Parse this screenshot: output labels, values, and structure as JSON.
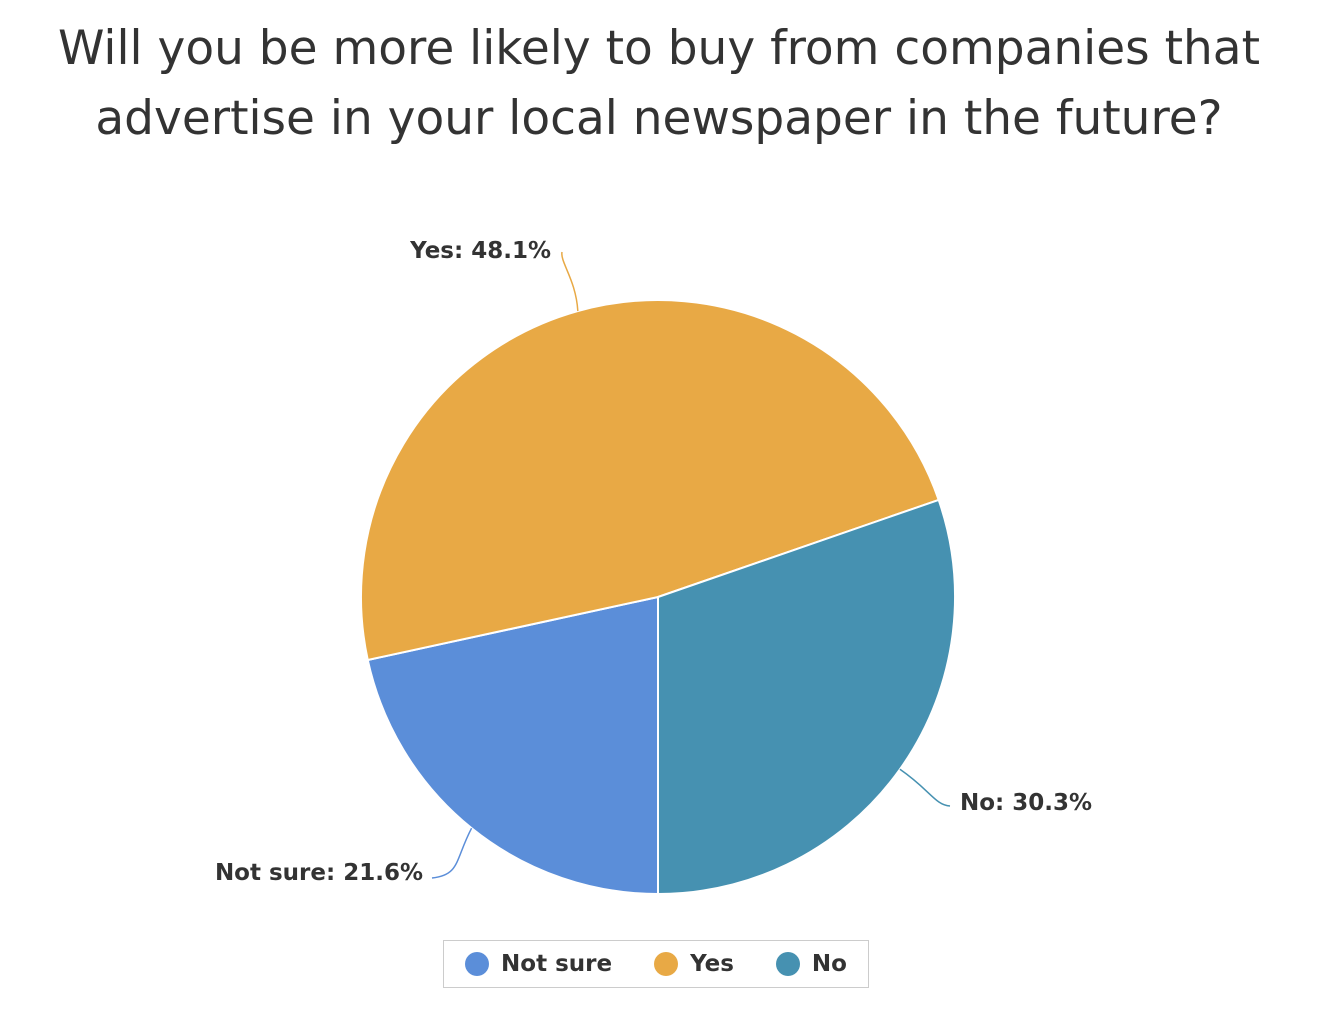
{
  "chart_data": {
    "type": "pie",
    "title_lines": [
      "Will you be more likely to buy from companies that",
      "advertise in your local newspaper in the future?"
    ],
    "slices": [
      {
        "name": "Not sure",
        "value": 21.6,
        "label": "Not sure: 21.6%",
        "color": "#5b8ed9"
      },
      {
        "name": "Yes",
        "value": 48.1,
        "label": "Yes: 48.1%",
        "color": "#e8a945"
      },
      {
        "name": "No",
        "value": 30.3,
        "label": "No: 30.3%",
        "color": "#4691b1"
      }
    ],
    "legend_position": "bottom-center"
  }
}
